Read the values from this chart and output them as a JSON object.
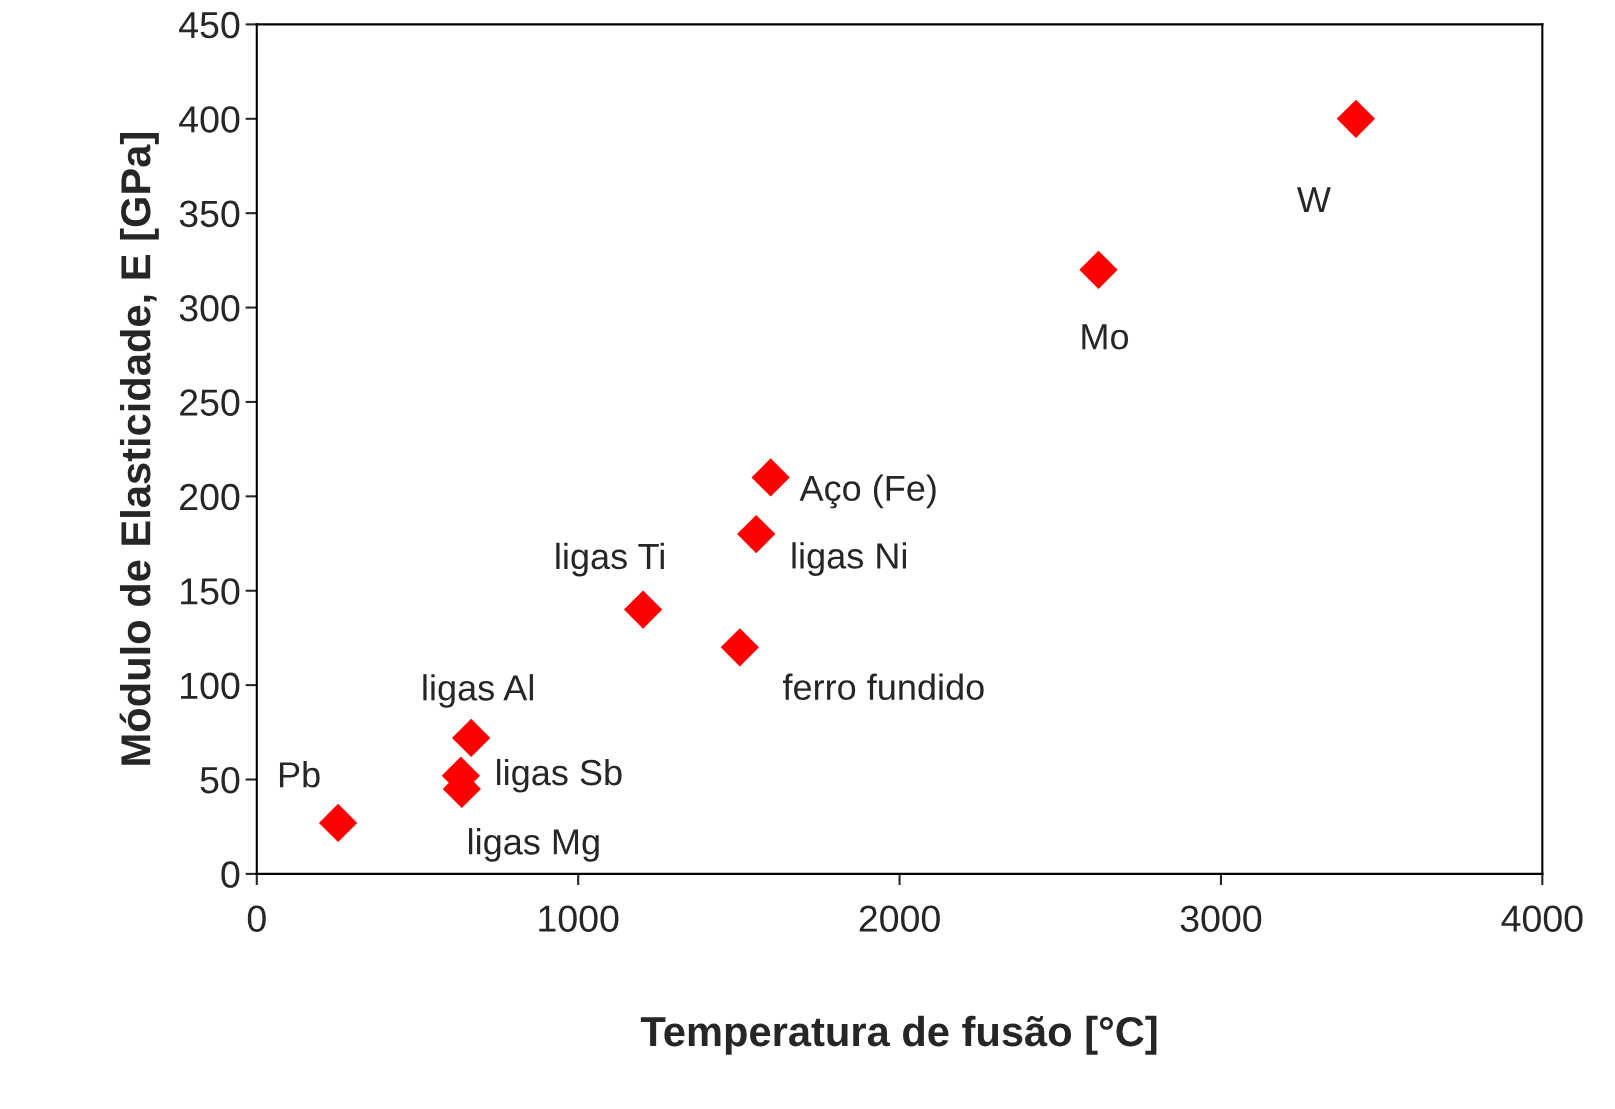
{
  "chart_data": {
    "type": "scatter",
    "xlabel": "Temperatura de fusão [°C]",
    "ylabel": "Módulo de Elasticidade, E [GPa]",
    "x": [
      253,
      638,
      635,
      667,
      1202,
      1503,
      1554,
      1599,
      2619,
      3420
    ],
    "values": [
      27,
      45,
      52,
      72,
      140,
      120,
      180,
      210,
      320,
      400
    ],
    "color": "#ff0000",
    "marker": "diamond",
    "xlim": [
      0,
      4000
    ],
    "xticks": [
      0,
      1000,
      2000,
      3000,
      4000
    ],
    "ylim": [
      0,
      450
    ],
    "yticks": [
      0,
      50,
      100,
      150,
      200,
      250,
      300,
      350,
      400,
      450
    ],
    "grid": false,
    "legend": false,
    "value_labels": [
      "Pb",
      "ligas Mg",
      "ligas Sb",
      "ligas Al",
      "ligas Ti",
      "ferro fundido",
      "ligas Ni",
      "Aço (Fe)",
      "Mo",
      "W"
    ]
  }
}
